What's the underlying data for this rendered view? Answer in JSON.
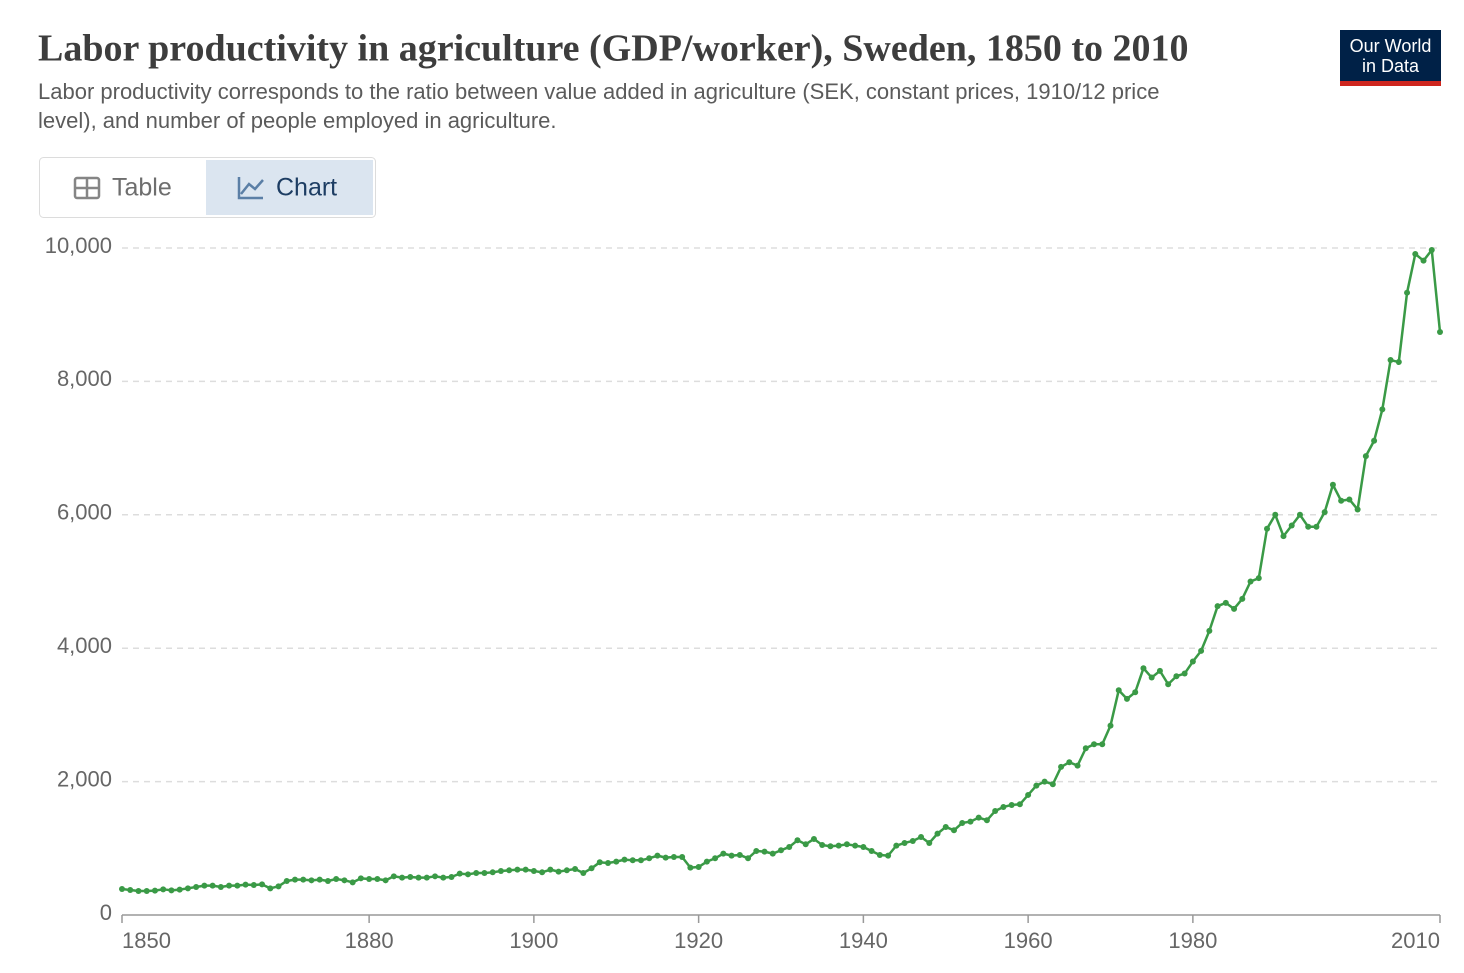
{
  "logo": [
    "Our World",
    "in Data"
  ],
  "tabs": [
    "Table",
    "Chart"
  ],
  "chart_data": {
    "type": "line",
    "title": "Labor productivity in agriculture (GDP/worker), Sweden, 1850 to 2010",
    "subtitle": [
      "Labor productivity corresponds to the ratio between value added in agriculture (SEK, constant prices, 1910/12 price",
      "level), and number of people employed in agriculture."
    ],
    "x": [
      1850,
      1851,
      1852,
      1853,
      1854,
      1855,
      1856,
      1857,
      1858,
      1859,
      1860,
      1861,
      1862,
      1863,
      1864,
      1865,
      1866,
      1867,
      1868,
      1869,
      1870,
      1871,
      1872,
      1873,
      1874,
      1875,
      1876,
      1877,
      1878,
      1879,
      1880,
      1881,
      1882,
      1883,
      1884,
      1885,
      1886,
      1887,
      1888,
      1889,
      1890,
      1891,
      1892,
      1893,
      1894,
      1895,
      1896,
      1897,
      1898,
      1899,
      1900,
      1901,
      1902,
      1903,
      1904,
      1905,
      1906,
      1907,
      1908,
      1909,
      1910,
      1911,
      1912,
      1913,
      1914,
      1915,
      1916,
      1917,
      1918,
      1919,
      1920,
      1921,
      1922,
      1923,
      1924,
      1925,
      1926,
      1927,
      1928,
      1929,
      1930,
      1931,
      1932,
      1933,
      1934,
      1935,
      1936,
      1937,
      1938,
      1939,
      1940,
      1941,
      1942,
      1943,
      1944,
      1945,
      1946,
      1947,
      1948,
      1949,
      1950,
      1951,
      1952,
      1953,
      1954,
      1955,
      1956,
      1957,
      1958,
      1959,
      1960,
      1961,
      1962,
      1963,
      1964,
      1965,
      1966,
      1967,
      1968,
      1969,
      1970,
      1971,
      1972,
      1973,
      1974,
      1975,
      1976,
      1977,
      1978,
      1979,
      1980,
      1981,
      1982,
      1983,
      1984,
      1985,
      1986,
      1987,
      1988,
      1989,
      1990,
      1991,
      1992,
      1993,
      1994,
      1995,
      1996,
      1997,
      1998,
      1999,
      2000,
      2001,
      2002,
      2003,
      2004,
      2005,
      2006,
      2007,
      2008,
      2009,
      2010
    ],
    "series": [
      {
        "name": "Sweden",
        "color": "#3a9a46",
        "values": [
          390,
          375,
          360,
          360,
          365,
          385,
          370,
          380,
          400,
          420,
          440,
          440,
          420,
          440,
          440,
          455,
          450,
          460,
          400,
          430,
          510,
          530,
          530,
          520,
          530,
          510,
          540,
          520,
          490,
          550,
          540,
          540,
          520,
          580,
          560,
          570,
          560,
          560,
          580,
          560,
          570,
          620,
          610,
          630,
          630,
          640,
          660,
          670,
          680,
          680,
          660,
          640,
          680,
          650,
          670,
          690,
          630,
          700,
          790,
          780,
          800,
          830,
          820,
          820,
          850,
          890,
          860,
          870,
          870,
          710,
          720,
          800,
          850,
          920,
          890,
          900,
          850,
          960,
          950,
          920,
          970,
          1020,
          1120,
          1060,
          1140,
          1050,
          1030,
          1040,
          1060,
          1040,
          1020,
          960,
          900,
          890,
          1040,
          1080,
          1110,
          1170,
          1080,
          1220,
          1320,
          1270,
          1380,
          1400,
          1460,
          1420,
          1560,
          1620,
          1650,
          1660,
          1800,
          1940,
          2000,
          1960,
          2220,
          2290,
          2240,
          2500,
          2560,
          2560,
          2840,
          3370,
          3240,
          3340,
          3700,
          3560,
          3660,
          3460,
          3580,
          3620,
          3800,
          3960,
          4260,
          4630,
          4680,
          4590,
          4740,
          5000,
          5050,
          5790,
          6000,
          5680,
          5840,
          6000,
          5820,
          5820,
          6040,
          6450,
          6210,
          6230,
          6080,
          6880,
          7110,
          7580,
          8320,
          8290,
          9330,
          9910,
          9810,
          9970,
          8740
        ]
      }
    ],
    "xlim": [
      1850,
      2010
    ],
    "xticks": [
      1850,
      1880,
      1900,
      1920,
      1940,
      1960,
      1980,
      2010
    ],
    "ylim": [
      0,
      10000
    ],
    "yticks": [
      0,
      {
        "value": 2000,
        "label": "2,000"
      },
      {
        "value": 4000,
        "label": "4,000"
      },
      {
        "value": 6000,
        "label": "6,000"
      },
      {
        "value": 8000,
        "label": "8,000"
      },
      {
        "value": 10000,
        "label": "10,000"
      }
    ],
    "grid": true
  }
}
